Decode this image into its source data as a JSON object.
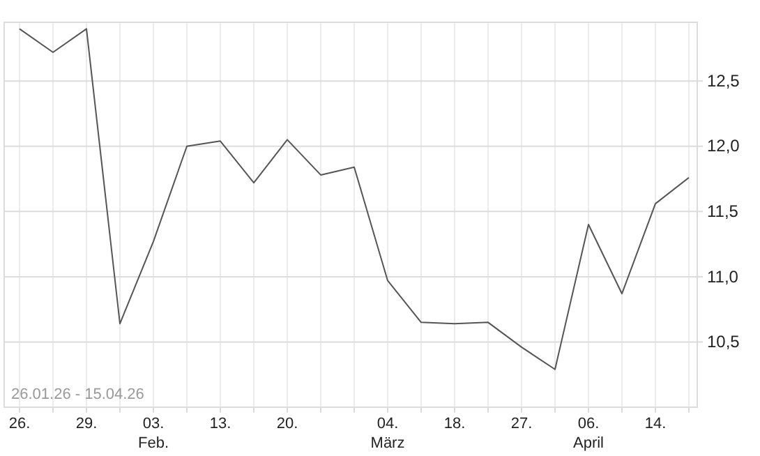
{
  "chart_data": {
    "type": "line",
    "categories": [
      "26.",
      null,
      "29.",
      null,
      "03.\nFeb.",
      null,
      "13.",
      null,
      "20.",
      null,
      null,
      "04.\nMärz",
      null,
      "18.",
      null,
      "27.",
      null,
      "06.\nApril",
      null,
      "14.",
      null
    ],
    "series": [
      {
        "color": "#555555",
        "values": [
          12.9,
          12.72,
          12.9,
          10.64,
          11.27,
          12.0,
          12.04,
          11.72,
          12.05,
          11.78,
          11.84,
          10.97,
          10.65,
          10.64,
          10.65,
          10.46,
          10.29,
          11.4,
          10.87,
          11.56,
          11.76
        ]
      }
    ],
    "ylim": [
      10.0,
      12.95
    ],
    "yticks": [
      {
        "value": 10.5,
        "label": "10,5"
      },
      {
        "value": 11.0,
        "label": "11,0"
      },
      {
        "value": 11.5,
        "label": "11,5"
      },
      {
        "value": 12.0,
        "label": "12,0"
      },
      {
        "value": 12.5,
        "label": "12,5"
      }
    ],
    "grid": true,
    "legend": false,
    "marker": "none",
    "line_style": "solid",
    "annotations": [
      "26.01.26 - 15.04.26"
    ]
  }
}
